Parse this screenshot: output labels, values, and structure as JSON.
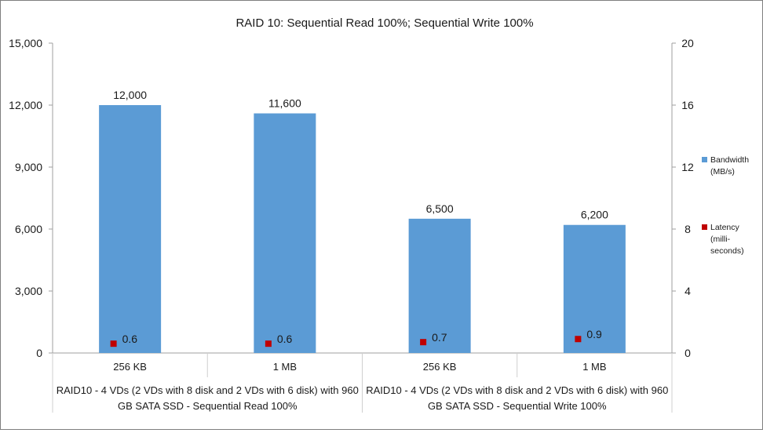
{
  "chart_data": {
    "type": "bar",
    "title": "RAID 10: Sequential Read 100%; Sequential Write 100%",
    "categories": [
      "256 KB",
      "1 MB",
      "256 KB",
      "1 MB"
    ],
    "groups": [
      "RAID10 - 4 VDs (2 VDs with 8 disk and 2 VDs with 6 disk) with 960 GB SATA SSD - Sequential Read 100%",
      "RAID10 - 4 VDs (2 VDs with 8 disk and 2 VDs with 6 disk) with 960 GB SATA SSD - Sequential Write 100%"
    ],
    "series": [
      {
        "name": "Bandwidth (MB/s)",
        "kind": "bar",
        "axis": "left",
        "color": "#5b9bd5",
        "values": [
          12000,
          11600,
          6500,
          6200
        ],
        "labels": [
          "12,000",
          "11,600",
          "6,500",
          "6,200"
        ]
      },
      {
        "name": "Latency (milli-seconds)",
        "kind": "marker",
        "axis": "right",
        "color": "#c00000",
        "values": [
          0.6,
          0.6,
          0.7,
          0.9
        ],
        "labels": [
          "0.6",
          "0.6",
          "0.7",
          "0.9"
        ]
      }
    ],
    "y_left": {
      "min": 0,
      "max": 15000,
      "ticks": [
        "0",
        "3,000",
        "6,000",
        "9,000",
        "12,000",
        "15,000"
      ]
    },
    "y_right": {
      "min": 0,
      "max": 20,
      "ticks": [
        "0",
        "4",
        "8",
        "12",
        "16",
        "20"
      ]
    },
    "grid": false,
    "legend": {
      "position": "right",
      "items": [
        {
          "lines": [
            "Bandwidth",
            "(MB/s)"
          ],
          "color": "#5b9bd5"
        },
        {
          "lines": [
            "Latency",
            "(milli-",
            "seconds)"
          ],
          "color": "#c00000"
        }
      ]
    }
  }
}
